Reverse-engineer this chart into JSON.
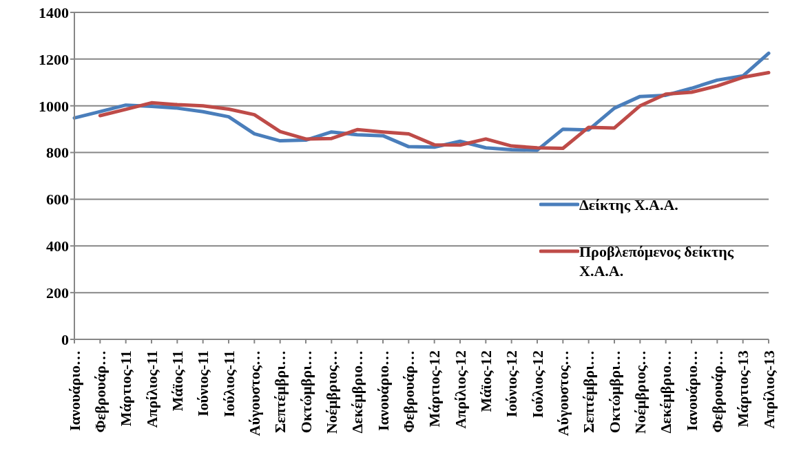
{
  "chart_data": {
    "type": "line",
    "categories": [
      "Ιανουάριο…",
      "Φεβρουάρ…",
      "Μάρτιος-11",
      "Απρίλιος-11",
      "Μάϊος-11",
      "Ιούνιος-11",
      "Ιούλιος-11",
      "Αύγουστος…",
      "Σεπτέμβρι…",
      "Οκτώμβρι…",
      "Νοέμβριος…",
      "Δεκέμβριο…",
      "Ιανουάριο…",
      "Φεβρουάρ…",
      "Μάρτιος-12",
      "Απρίλιος-12",
      "Μάϊος-12",
      "Ιούνιος-12",
      "Ιούλιος-12",
      "Αύγουστος…",
      "Σεπτέμβρι…",
      "Οκτώμβρι…",
      "Νοέμβριος…",
      "Δεκέμβριο…",
      "Ιανουάριο…",
      "Φεβρουάρ…",
      "Μάρτιος-13",
      "Απρίλιος-13"
    ],
    "series": [
      {
        "name": "Δείκτης Χ.Α.Α.",
        "color": "#4a7ebb",
        "values": [
          948,
          975,
          1003,
          998,
          990,
          975,
          953,
          880,
          850,
          853,
          888,
          876,
          872,
          825,
          823,
          848,
          820,
          812,
          810,
          900,
          897,
          990,
          1040,
          1045,
          1075,
          1110,
          1128,
          1225
        ]
      },
      {
        "name": "Προβλεπόμενος δείκτης Χ.Α.Α.",
        "color": "#be4b48",
        "values": [
          null,
          958,
          985,
          1013,
          1005,
          1000,
          986,
          962,
          890,
          858,
          860,
          898,
          888,
          880,
          833,
          832,
          858,
          828,
          820,
          818,
          908,
          905,
          1000,
          1050,
          1058,
          1085,
          1122,
          1142
        ]
      }
    ],
    "ylim": [
      0,
      1400
    ],
    "yticks": [
      0,
      200,
      400,
      600,
      800,
      1000,
      1200,
      1400
    ],
    "grid": "y",
    "legend": "right",
    "marker": "none",
    "line_style": "solid"
  }
}
